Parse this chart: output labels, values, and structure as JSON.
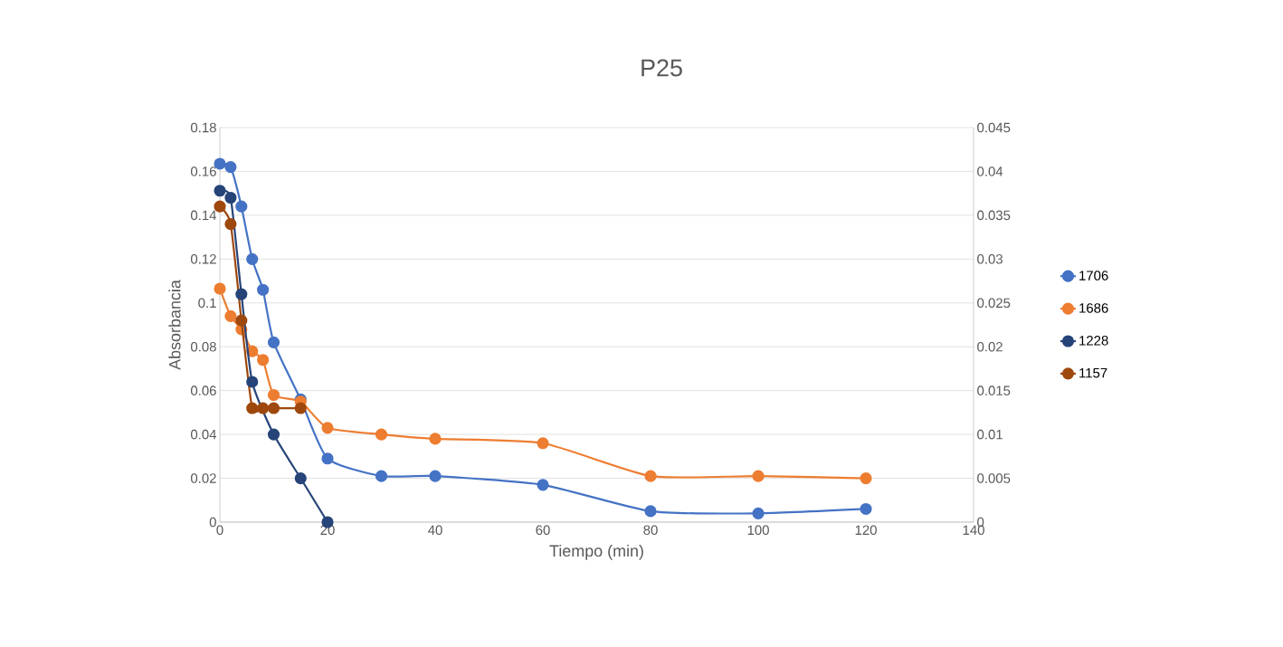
{
  "chart_data": {
    "type": "line",
    "title": "P25",
    "xlabel": "Tiempo (min)",
    "ylabel": "Absorbancia",
    "xlim": [
      0,
      140
    ],
    "xticks": [
      0,
      20,
      40,
      60,
      80,
      100,
      120,
      140
    ],
    "ylim": [
      0,
      0.18
    ],
    "yticks": [
      0,
      0.02,
      0.04,
      0.06,
      0.08,
      0.1,
      0.12,
      0.14,
      0.16,
      0.18
    ],
    "y2lim": [
      0,
      0.045
    ],
    "y2ticks": [
      0,
      0.005,
      0.01,
      0.015,
      0.02,
      0.025,
      0.03,
      0.035,
      0.04,
      0.045
    ],
    "grid": "y",
    "legend": "right",
    "marker": "circle",
    "line_style": "solid",
    "series": [
      {
        "name": "1706",
        "color": "#4472c4",
        "x": [
          0,
          2,
          4,
          6,
          8,
          10,
          15,
          20,
          30,
          40,
          60,
          80,
          100,
          120
        ],
        "values": [
          0.1635,
          0.162,
          0.144,
          0.12,
          0.106,
          0.082,
          0.056,
          0.029,
          0.021,
          0.021,
          0.017,
          0.005,
          0.004,
          0.006
        ]
      },
      {
        "name": "1686",
        "color": "#ed7d31",
        "x": [
          0,
          2,
          4,
          6,
          8,
          10,
          15,
          20,
          30,
          40,
          60,
          80,
          100,
          120
        ],
        "values": [
          0.1065,
          0.094,
          0.088,
          0.078,
          0.074,
          0.058,
          0.055,
          0.043,
          0.04,
          0.038,
          0.036,
          0.021,
          0.021,
          0.02
        ]
      },
      {
        "name": "1228",
        "color": "#264478",
        "axis": "y2",
        "x": [
          0,
          2,
          4,
          6,
          10,
          15,
          20
        ],
        "values": [
          0.0378,
          0.037,
          0.026,
          0.016,
          0.01,
          0.005,
          0
        ]
      },
      {
        "name": "1157",
        "color": "#9e480e",
        "axis": "y2",
        "x": [
          0,
          2,
          4,
          6,
          8,
          10,
          15
        ],
        "values": [
          0.036,
          0.034,
          0.023,
          0.013,
          0.013,
          0.013,
          0.013
        ]
      }
    ]
  }
}
